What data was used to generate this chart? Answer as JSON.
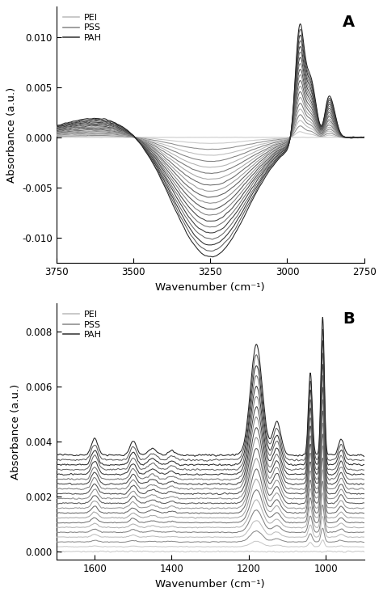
{
  "panel_A": {
    "xmin": 2750,
    "xmax": 3750,
    "ymin": -0.0125,
    "ymax": 0.013,
    "yticks": [
      -0.01,
      -0.005,
      0.0,
      0.005,
      0.01
    ],
    "ytick_labels": [
      "-0.010",
      "-0.005",
      "0.000",
      "0.005",
      "0.010"
    ],
    "xlabel": "Wavenumber (cm⁻¹)",
    "ylabel": "Absorbance (a.u.)",
    "label": "A"
  },
  "panel_B": {
    "xmin": 900,
    "xmax": 1700,
    "ymin": -0.0003,
    "ymax": 0.009,
    "yticks": [
      0.0,
      0.002,
      0.004,
      0.006,
      0.008
    ],
    "ytick_labels": [
      "0.000",
      "0.002",
      "0.004",
      "0.006",
      "0.008"
    ],
    "xlabel": "Wavenumber (cm⁻¹)",
    "ylabel": "Absorbance (a.u.)",
    "label": "B"
  },
  "n_bilayers": 10,
  "legend_colors": [
    "#c0c0c0",
    "#909090",
    "#404040"
  ],
  "legend_labels": [
    "PEI",
    "PSS",
    "PAH"
  ],
  "background_color": "#ffffff"
}
